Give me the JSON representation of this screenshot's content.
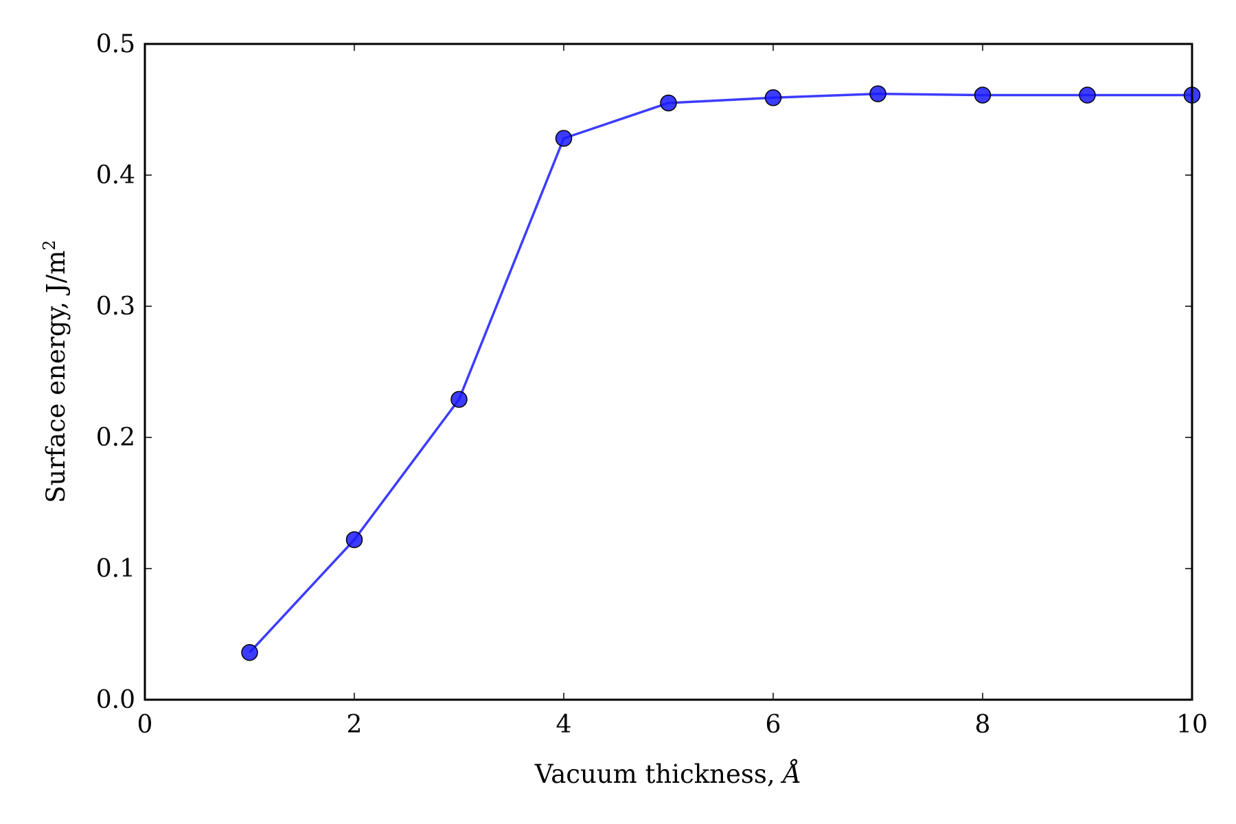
{
  "chart_data": {
    "type": "line",
    "title": "",
    "xlabel": {
      "text": "Vacuum thickness, ",
      "unit": "Å"
    },
    "ylabel": {
      "text": "Surface energy, J/m",
      "exponent": "2"
    },
    "xlim": [
      0,
      10
    ],
    "ylim": [
      0,
      0.5
    ],
    "x_ticks": [
      0,
      2,
      4,
      6,
      8,
      10
    ],
    "x_tick_labels": [
      "0",
      "2",
      "4",
      "6",
      "8",
      "10"
    ],
    "y_ticks": [
      0.0,
      0.1,
      0.2,
      0.3,
      0.4,
      0.5
    ],
    "y_tick_labels": [
      "0.0",
      "0.1",
      "0.2",
      "0.3",
      "0.4",
      "0.5"
    ],
    "grid": false,
    "legend": false,
    "series": [
      {
        "color": "#1a1aff",
        "marker": "circle",
        "x": [
          1,
          2,
          3,
          4,
          5,
          6,
          7,
          8,
          9,
          10
        ],
        "y": [
          0.036,
          0.122,
          0.229,
          0.428,
          0.455,
          0.459,
          0.462,
          0.461,
          0.461,
          0.461
        ]
      }
    ]
  }
}
